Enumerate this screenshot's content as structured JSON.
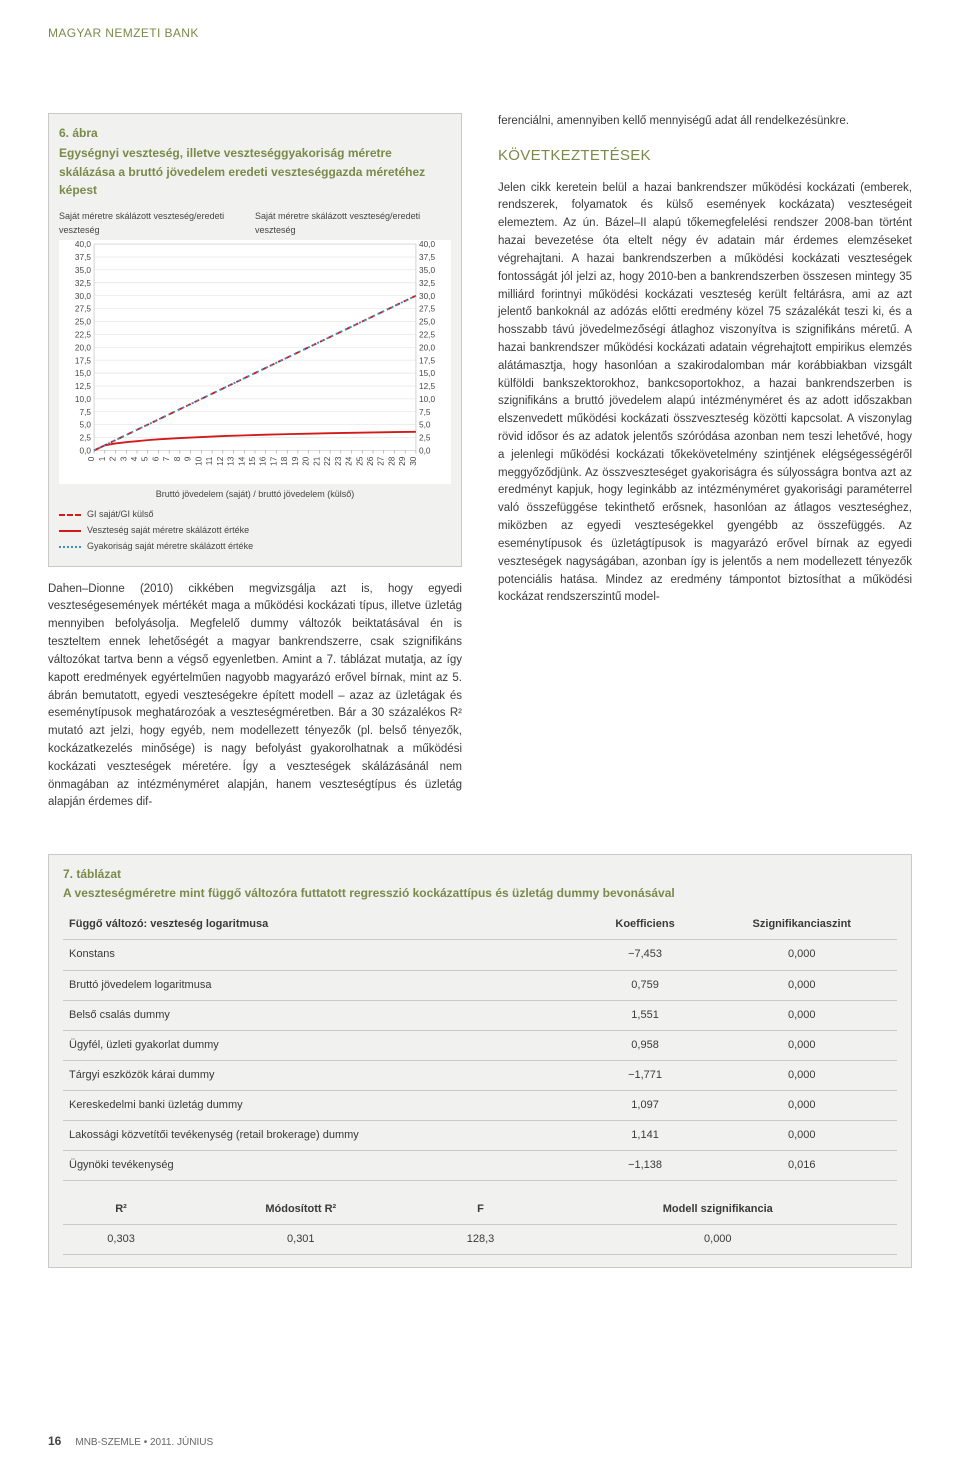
{
  "running_head": "MAGYAR NEMZETI BANK",
  "figure": {
    "title1": "6. ábra",
    "title2": "Egységnyi veszteség, illetve veszteséggyakoriság méretre skálázása a bruttó jövedelem eredeti veszteséggazda méretéhez képest",
    "y_left_label": "Saját méretre skálázott veszteség/eredeti veszteség",
    "y_right_label": "Saját méretre skálázott veszteség/eredeti veszteség",
    "x_caption": "Bruttó jövedelem (saját) / bruttó jövedelem (külső)",
    "tick_fontsize": 8,
    "label_fontsize": 9,
    "xlim": [
      0,
      30
    ],
    "ylim": [
      0,
      40
    ],
    "ytick_step": 2.5,
    "x_ticks": [
      0,
      1,
      2,
      3,
      4,
      5,
      6,
      7,
      8,
      9,
      10,
      11,
      12,
      13,
      14,
      15,
      16,
      17,
      18,
      19,
      20,
      21,
      22,
      23,
      24,
      25,
      26,
      27,
      28,
      29,
      30
    ],
    "y_ticks": [
      "0,0",
      "2,5",
      "5,0",
      "7,5",
      "10,0",
      "12,5",
      "15,0",
      "17,5",
      "20,0",
      "22,5",
      "25,0",
      "27,5",
      "30,0",
      "32,5",
      "35,0",
      "37,5",
      "40,0"
    ],
    "background_color": "#ffffff",
    "grid_color": "#dcdcdc",
    "border_color": "#c9c9c9",
    "series": [
      {
        "name": "GI saját/GI külső",
        "color": "#d11a1a",
        "dash": "5,4",
        "width": 1.8,
        "points": [
          [
            0,
            0
          ],
          [
            30,
            30
          ]
        ]
      },
      {
        "name": "Veszteség saját méretre skálázott értéke",
        "color": "#d11a1a",
        "dash": "none",
        "width": 1.8,
        "points": [
          [
            0,
            0
          ],
          [
            1,
            1.0
          ],
          [
            2,
            1.35
          ],
          [
            3,
            1.6
          ],
          [
            4,
            1.8
          ],
          [
            5,
            2.0
          ],
          [
            6,
            2.15
          ],
          [
            7,
            2.28
          ],
          [
            8,
            2.4
          ],
          [
            9,
            2.5
          ],
          [
            10,
            2.6
          ],
          [
            12,
            2.78
          ],
          [
            14,
            2.92
          ],
          [
            16,
            3.05
          ],
          [
            18,
            3.16
          ],
          [
            20,
            3.25
          ],
          [
            22,
            3.34
          ],
          [
            24,
            3.42
          ],
          [
            26,
            3.49
          ],
          [
            28,
            3.56
          ],
          [
            30,
            3.62
          ]
        ]
      },
      {
        "name": "Gyakoriság saját méretre skálázott értéke",
        "color": "#3a8fc4",
        "dash": "2,3",
        "width": 1.8,
        "points": [
          [
            0,
            0
          ],
          [
            1,
            1.0
          ],
          [
            2,
            2.0
          ],
          [
            3,
            3.0
          ],
          [
            5,
            5.0
          ],
          [
            8,
            8.0
          ],
          [
            10,
            10.0
          ],
          [
            14,
            14.0
          ],
          [
            18,
            18.0
          ],
          [
            22,
            22.0
          ],
          [
            26,
            26.0
          ],
          [
            30,
            30.0
          ]
        ]
      }
    ],
    "legend": [
      {
        "swatch": "#d11a1a",
        "dash": "5,4",
        "label": "GI saját/GI külső"
      },
      {
        "swatch": "#d11a1a",
        "dash": "none",
        "label": "Veszteség saját méretre skálázott értéke"
      },
      {
        "swatch": "#3a8fc4",
        "dash": "2,3",
        "label": "Gyakoriság saját méretre skálázott értéke"
      }
    ]
  },
  "left_para": "Dahen–Dionne (2010) cikkében megvizsgálja azt is, hogy egyedi veszteségesemények mértékét maga a működési kockázati típus, illetve üzletág mennyiben befolyásolja. Megfelelő dummy változók beiktatásával én is teszteltem ennek lehetőségét a magyar bankrendszerre, csak szignifikáns változókat tartva benn a végső egyenletben. Amint a 7. táblázat mutatja, az így kapott eredmények egyértelműen nagyobb magyarázó erővel bírnak, mint az 5. ábrán bemutatott, egyedi veszteségekre épített modell – azaz az üzletágak és eseménytípusok meghatározóak a veszteségméretben. Bár a 30 százalékos R² mutató azt jelzi, hogy egyéb, nem modellezett tényezők (pl. belső tényezők, kockázatkezelés minősége) is nagy befolyást gyakorolhatnak a működési kockázati veszteségek méretére. Így a veszteségek skálázásánál nem önmagában az intézményméret alapján, hanem veszteségtípus és üzletág alapján érdemes dif-",
  "right_top_para": "ferenciálni, amennyiben kellő mennyiségű adat áll rendelkezésünkre.",
  "section_head": "KÖVETKEZTETÉSEK",
  "right_para": "Jelen cikk keretein belül a hazai bankrendszer működési kockázati (emberek, rendszerek, folyamatok és külső események kockázata) veszteségeit elemeztem. Az ún. Bázel–II alapú tőkemegfelelési rendszer 2008-ban történt hazai bevezetése óta eltelt négy év adatain már érdemes elemzéseket végrehajtani. A hazai bankrendszerben a működési kockázati veszteségek fontosságát jól jelzi az, hogy 2010-ben a bankrendszerben összesen mintegy 35 milliárd forintnyi működési kockázati veszteség került feltárásra, ami az azt jelentő bankoknál az adózás előtti eredmény közel 75 százalékát teszi ki, és a hosszabb távú jövedelmezőségi átlaghoz viszonyítva is szignifikáns méretű. A hazai bankrendszer működési kockázati adatain végrehajtott empirikus elemzés alátámasztja, hogy hasonlóan a szakirodalomban már korábbiakban vizsgált külföldi bankszektorokhoz, bankcsoportokhoz, a hazai bankrendszerben is szignifikáns a bruttó jövedelem alapú intézményméret és az adott időszakban elszenvedett működési kockázati összveszteség közötti kapcsolat. A viszonylag rövid idősor és az adatok jelentős szóródása azonban nem teszi lehetővé, hogy a jelenlegi működési kockázati tőkekövetelmény szintjének elégségességéről meggyőződjünk. Az összveszteséget gyakoriságra és súlyosságra bontva azt az eredményt kapjuk, hogy leginkább az intézményméret gyakorisági paraméterrel való összefüggése tekinthető erősnek, hasonlóan az átlagos veszteséghez, miközben az egyedi veszteségekkel gyengébb az összefüggés. Az eseménytípusok és üzletágtípusok is magyarázó erővel bírnak az egyedi veszteségek nagyságában, azonban így is jelentős a nem modellezett tényezők potenciális hatása. Mindez az eredmény támpontot biztosíthat a működési kockázat rendszerszintű model-",
  "table": {
    "title1": "7. táblázat",
    "title2": "A veszteségméretre mint függő változóra futtatott regresszió kockázattípus és üzletág dummy bevonásával",
    "headers": [
      "Függő változó: veszteség logaritmusa",
      "Koefficiens",
      "Szignifikanciaszint"
    ],
    "rows": [
      [
        "Konstans",
        "−7,453",
        "0,000"
      ],
      [
        "Bruttó jövedelem logaritmusa",
        "0,759",
        "0,000"
      ],
      [
        "Belső csalás dummy",
        "1,551",
        "0,000"
      ],
      [
        "Ügyfél, üzleti gyakorlat dummy",
        "0,958",
        "0,000"
      ],
      [
        "Tárgyi eszközök kárai dummy",
        "−1,771",
        "0,000"
      ],
      [
        "Kereskedelmi banki üzletág dummy",
        "1,097",
        "0,000"
      ],
      [
        "Lakossági közvetítői tevékenység (retail brokerage) dummy",
        "1,141",
        "0,000"
      ],
      [
        "Ügynöki tevékenység",
        "−1,138",
        "0,016"
      ]
    ],
    "stats_headers": [
      "R²",
      "Módosított R²",
      "F",
      "Modell szignifikancia"
    ],
    "stats_row": [
      "0,303",
      "0,301",
      "128,3",
      "0,000"
    ]
  },
  "footer": {
    "page": "16",
    "label": "MNB-SZEMLE • 2011. JÚNIUS"
  }
}
